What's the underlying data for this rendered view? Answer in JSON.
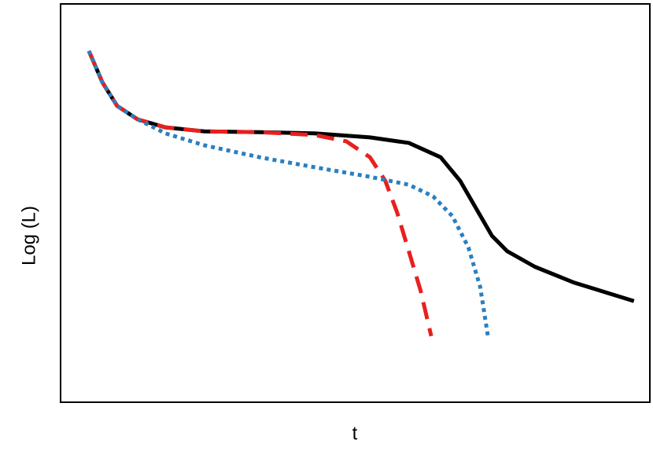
{
  "chart_data": {
    "type": "line",
    "xlabel": "t",
    "ylabel": "Log (L)",
    "xlim": [
      0,
      100
    ],
    "ylim": [
      0,
      100
    ],
    "series": [
      {
        "color": "#000000",
        "dash": "solid",
        "x": [
          4.8,
          7.1,
          9.6,
          13.1,
          17.8,
          24.4,
          33.8,
          43.1,
          52.5,
          59.1,
          64.5,
          67.8,
          70.5,
          73.2,
          75.8,
          80.5,
          87.2,
          97.3
        ],
        "values": [
          88.2,
          80.3,
          74.4,
          71.0,
          69.0,
          68.0,
          67.8,
          67.5,
          66.5,
          65.1,
          61.5,
          55.6,
          48.7,
          41.8,
          37.9,
          34.0,
          30.0,
          25.4
        ]
      },
      {
        "color": "#e8201e",
        "dash": "dashed",
        "x": [
          4.8,
          7.1,
          9.6,
          13.1,
          17.8,
          24.4,
          33.8,
          43.1,
          48.5,
          52.5,
          55.1,
          57.1,
          59.1,
          61.1,
          62.9
        ],
        "values": [
          88.2,
          80.3,
          74.4,
          71.0,
          69.0,
          68.0,
          67.8,
          67.1,
          65.5,
          61.5,
          55.6,
          47.7,
          37.9,
          28.0,
          16.6
        ]
      },
      {
        "color": "#2a7fc0",
        "dash": "dotted",
        "x": [
          4.8,
          7.1,
          9.6,
          13.1,
          17.8,
          24.4,
          33.8,
          43.1,
          52.5,
          59.1,
          63.2,
          66.5,
          69.2,
          71.2,
          72.5
        ],
        "values": [
          88.2,
          80.3,
          74.4,
          71.0,
          67.5,
          64.5,
          61.5,
          59.0,
          56.6,
          54.6,
          51.7,
          46.7,
          38.9,
          29.0,
          16.8
        ]
      }
    ]
  }
}
